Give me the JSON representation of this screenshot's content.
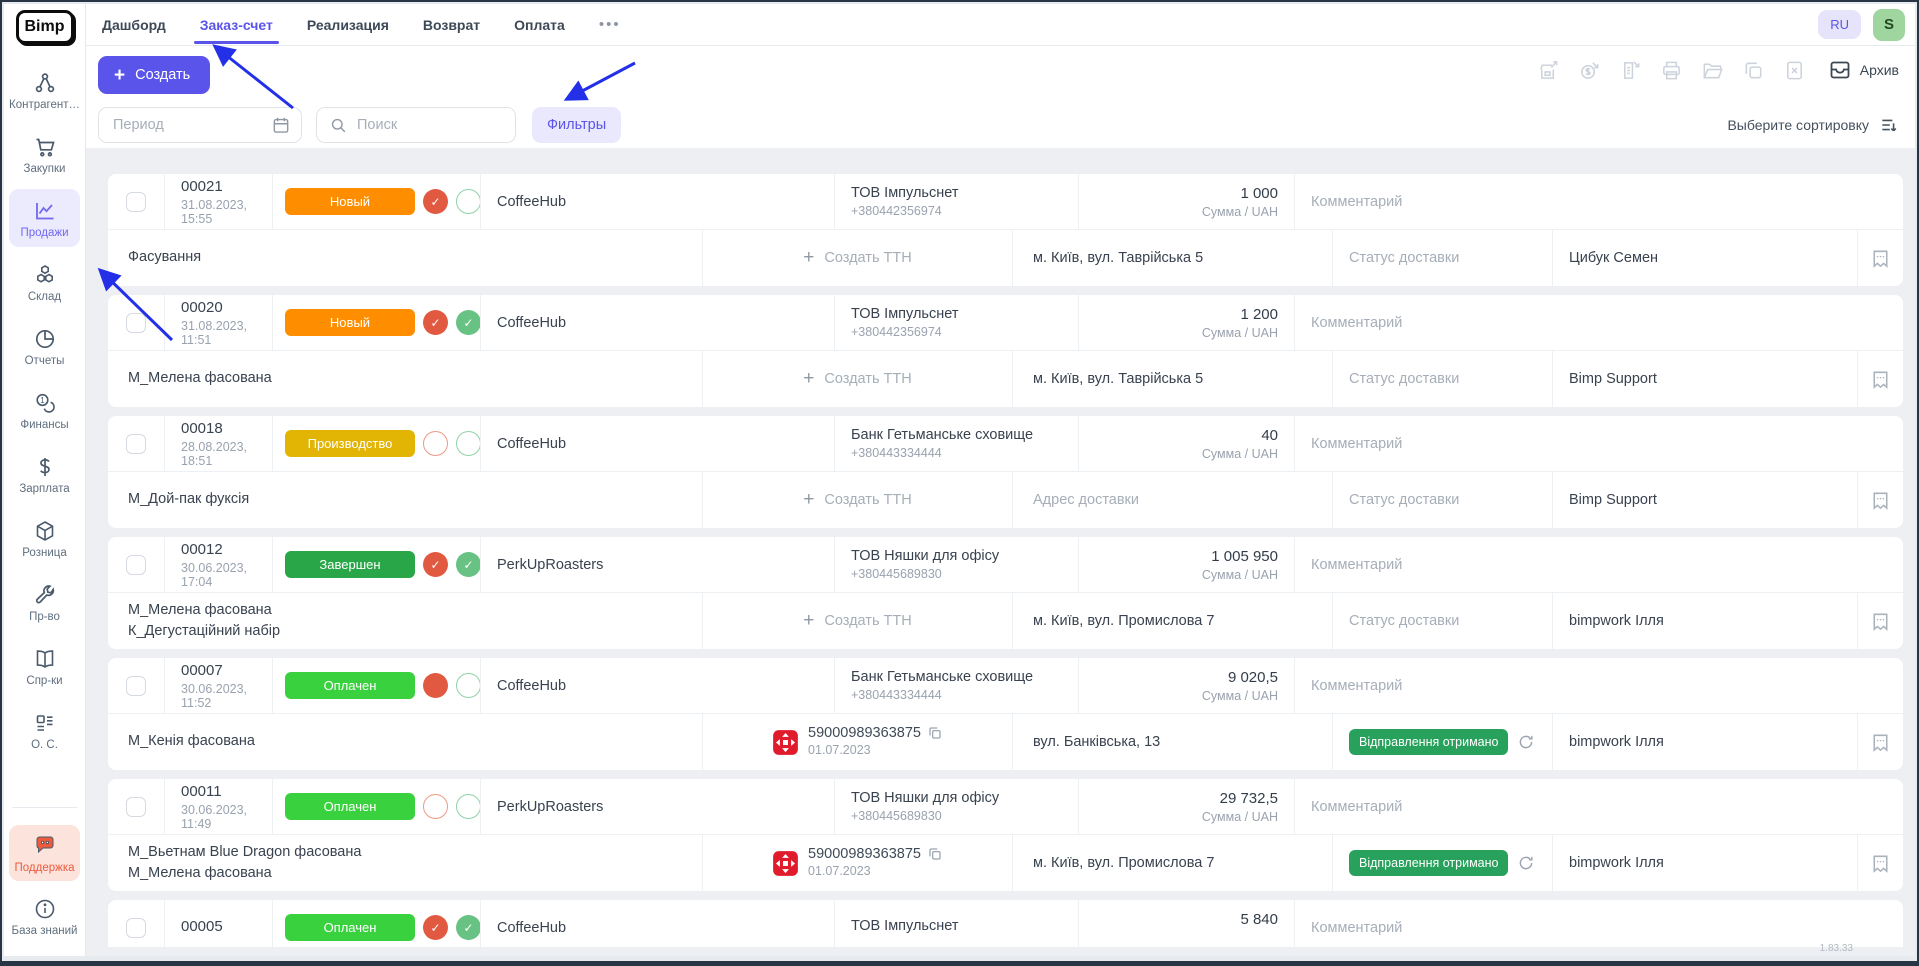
{
  "brand": {
    "name": "Bimp"
  },
  "topbar": {
    "tabs": [
      {
        "label": "Дашборд",
        "active": false
      },
      {
        "label": "Заказ-счет",
        "active": true
      },
      {
        "label": "Реализация",
        "active": false
      },
      {
        "label": "Возврат",
        "active": false
      },
      {
        "label": "Оплата",
        "active": false
      }
    ],
    "more": "•••",
    "lang": "RU",
    "avatar": "S"
  },
  "sidebar": {
    "items": [
      {
        "label": "Контрагент…",
        "icon": "share-nodes-icon",
        "active": false
      },
      {
        "label": "Закупки",
        "icon": "cart-icon",
        "active": false
      },
      {
        "label": "Продажи",
        "icon": "chart-line-icon",
        "active": true
      },
      {
        "label": "Склад",
        "icon": "cubes-icon",
        "active": false
      },
      {
        "label": "Отчеты",
        "icon": "pie-chart-icon",
        "active": false
      },
      {
        "label": "Финансы",
        "icon": "coins-icon",
        "active": false
      },
      {
        "label": "Зарплата",
        "icon": "dollar-icon",
        "active": false
      },
      {
        "label": "Розница",
        "icon": "box-icon",
        "active": false
      },
      {
        "label": "Пр-во",
        "icon": "wrench-icon",
        "active": false
      },
      {
        "label": "Спр-ки",
        "icon": "book-icon",
        "active": false
      },
      {
        "label": "О. С.",
        "icon": "layout-list-icon",
        "active": false
      }
    ],
    "support": {
      "label": "Поддержка",
      "icon": "chat-icon"
    },
    "knowledge": {
      "label": "База знаний",
      "icon": "info-icon"
    }
  },
  "toolbar": {
    "create_label": "Создать",
    "disabled_icons": [
      "store-export-icon",
      "money-export-icon",
      "document-export-icon",
      "print-icon",
      "folder-open-icon",
      "copy-icon",
      "file-cancel-icon"
    ],
    "archive_label": "Архив"
  },
  "filterbar": {
    "period_placeholder": "Период",
    "search_placeholder": "Поиск",
    "filters_label": "Фильтры",
    "sort_label": "Выберите сортировку"
  },
  "table": {
    "comment_placeholder": "Комментарий",
    "amount_caption": "Сумма / UAH",
    "ttn_create_label": "Создать ТТН",
    "delivery_placeholder": "Статус доставки",
    "address_placeholder": "Адрес доставки",
    "rows": [
      {
        "number": "00021",
        "datetime": "31.08.2023, 15:55",
        "status": {
          "label": "Новый",
          "color_key": "status_new"
        },
        "flags": [
          "check-red",
          "empty-green"
        ],
        "client": "CoffeeHub",
        "partner": "ТОВ Імпульснет",
        "phone": "+380442356974",
        "amount": "1 000",
        "products": [
          "Фасування"
        ],
        "ttn": {
          "type": "create"
        },
        "address": "м. Київ, вул. Таврійська 5",
        "delivery": {
          "type": "placeholder"
        },
        "responsible": "Цибук Семен",
        "partial": false
      },
      {
        "number": "00020",
        "datetime": "31.08.2023, 11:51",
        "status": {
          "label": "Новый",
          "color_key": "status_new"
        },
        "flags": [
          "check-red",
          "check-green"
        ],
        "client": "CoffeeHub",
        "partner": "ТОВ Імпульснет",
        "phone": "+380442356974",
        "amount": "1 200",
        "products": [
          "М_Мелена фасована"
        ],
        "ttn": {
          "type": "create"
        },
        "address": "м. Київ, вул. Таврійська 5",
        "delivery": {
          "type": "placeholder"
        },
        "responsible": "Bimp Support",
        "partial": false
      },
      {
        "number": "00018",
        "datetime": "28.08.2023, 18:51",
        "status": {
          "label": "Производство",
          "color_key": "status_production"
        },
        "flags": [
          "empty-red",
          "empty-green"
        ],
        "client": "CoffeeHub",
        "partner": "Банк Гетьманське сховище",
        "phone": "+380443334444",
        "amount": "40",
        "products": [
          "М_Дой-пак фуксія"
        ],
        "ttn": {
          "type": "create"
        },
        "address": "",
        "delivery": {
          "type": "placeholder"
        },
        "responsible": "Bimp Support",
        "partial": false
      },
      {
        "number": "00012",
        "datetime": "30.06.2023, 17:04",
        "status": {
          "label": "Завершен",
          "color_key": "status_done"
        },
        "flags": [
          "check-red",
          "check-green"
        ],
        "client": "PerkUpRoasters",
        "partner": "ТОВ Няшки для офісу",
        "phone": "+380445689830",
        "amount": "1 005 950",
        "products": [
          "М_Мелена фасована",
          "К_Дегустаційний набір"
        ],
        "ttn": {
          "type": "create"
        },
        "address": "м. Київ, вул. Промислова 7",
        "delivery": {
          "type": "placeholder"
        },
        "responsible": "bimpwork Ілля",
        "partial": false
      },
      {
        "number": "00007",
        "datetime": "30.06.2023, 11:52",
        "status": {
          "label": "Оплачен",
          "color_key": "status_paid"
        },
        "flags": [
          "solid-red",
          "empty-green"
        ],
        "client": "CoffeeHub",
        "partner": "Банк Гетьманське сховище",
        "phone": "+380443334444",
        "amount": "9 020,5",
        "products": [
          "М_Кенія фасована"
        ],
        "ttn": {
          "type": "tracking",
          "number": "59000989363875",
          "date": "01.07.2023"
        },
        "address": "вул. Банківська, 13",
        "delivery": {
          "type": "badge",
          "label": "Відправлення отримано"
        },
        "responsible": "bimpwork Ілля",
        "partial": false
      },
      {
        "number": "00011",
        "datetime": "30.06.2023, 11:49",
        "status": {
          "label": "Оплачен",
          "color_key": "status_paid"
        },
        "flags": [
          "empty-red",
          "empty-green"
        ],
        "client": "PerkUpRoasters",
        "partner": "ТОВ Няшки для офісу",
        "phone": "+380445689830",
        "amount": "29 732,5",
        "products": [
          "М_Вьетнам Blue Dragon фасована",
          "М_Мелена фасована"
        ],
        "ttn": {
          "type": "tracking",
          "number": "59000989363875",
          "date": "01.07.2023"
        },
        "address": "м. Київ, вул. Промислова 7",
        "delivery": {
          "type": "badge",
          "label": "Відправлення отримано"
        },
        "responsible": "bimpwork Ілля",
        "partial": false
      },
      {
        "number": "00005",
        "datetime": "",
        "status": {
          "label": "Оплачен",
          "color_key": "status_paid"
        },
        "flags": [
          "check-red",
          "check-green"
        ],
        "client": "CoffeeHub",
        "partner": "ТОВ Імпульснет",
        "phone": "",
        "amount": "5 840",
        "products": [],
        "ttn": {
          "type": "create"
        },
        "address": "",
        "delivery": {
          "type": "placeholder"
        },
        "responsible": "",
        "partial": true
      }
    ]
  },
  "footer": {
    "version": "1.83.33"
  },
  "colors": {
    "accent": "#5b54ea",
    "status_new": "#ff8d00",
    "status_production": "#e2b404",
    "status_done": "#29a748",
    "status_paid": "#3ad13e",
    "delivery_badge": "#27a15b",
    "check_red": "#e25941",
    "check_green": "#68c283",
    "arrow_blue": "#2330e8"
  }
}
